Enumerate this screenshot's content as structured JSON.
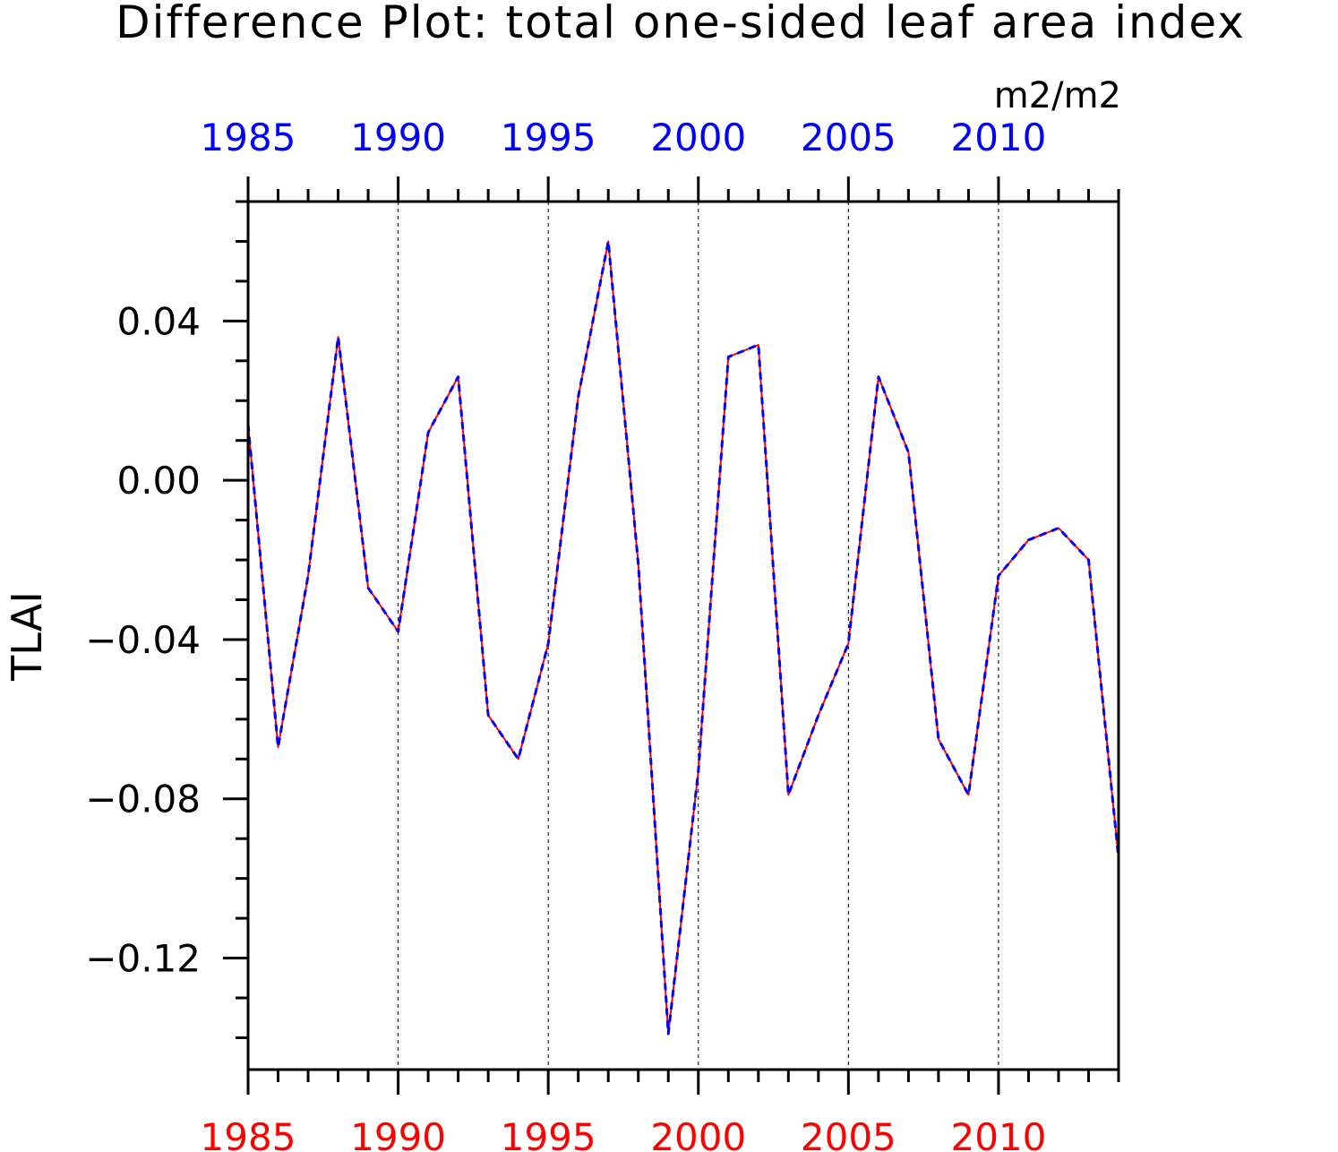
{
  "chart_data": {
    "type": "line",
    "title": "Difference Plot: total one-sided leaf area index",
    "units": "m2/m2",
    "ylabel": "TLAI",
    "xlabel": "",
    "xlim": [
      1985,
      2014
    ],
    "ylim": [
      -0.148,
      0.07
    ],
    "x_major_ticks": [
      1985,
      1990,
      1995,
      2000,
      2005,
      2010
    ],
    "x_tick_labels_top": [
      "1985",
      "1990",
      "1995",
      "2000",
      "2005",
      "2010"
    ],
    "x_tick_labels_bottom": [
      "1985",
      "1990",
      "1995",
      "2000",
      "2005",
      "2010"
    ],
    "y_major_ticks": [
      0.04,
      0.0,
      -0.04,
      -0.08,
      -0.12
    ],
    "y_tick_labels": [
      "0.04",
      "0.00",
      "−0.04",
      "−0.08",
      "−0.12"
    ],
    "y_minor_step": 0.01,
    "x_minor_step": 1,
    "grid": "vertical dashed at major x ticks",
    "x": [
      1985,
      1986,
      1987,
      1988,
      1989,
      1990,
      1991,
      1992,
      1993,
      1994,
      1995,
      1996,
      1997,
      1998,
      1999,
      2000,
      2001,
      2002,
      2003,
      2004,
      2005,
      2006,
      2007,
      2008,
      2009,
      2010,
      2011,
      2012,
      2013,
      2014
    ],
    "series": [
      {
        "color": "#ff0000",
        "style": "solid",
        "values": [
          0.014,
          -0.067,
          -0.024,
          0.036,
          -0.027,
          -0.038,
          0.012,
          0.026,
          -0.059,
          -0.07,
          -0.041,
          0.021,
          0.06,
          -0.021,
          -0.139,
          -0.073,
          0.031,
          0.034,
          -0.079,
          -0.059,
          -0.041,
          0.026,
          0.007,
          -0.065,
          -0.079,
          -0.024,
          -0.015,
          -0.012,
          -0.02,
          -0.095
        ]
      },
      {
        "color": "#0000ff",
        "style": "dashed",
        "values": [
          0.014,
          -0.067,
          -0.024,
          0.036,
          -0.027,
          -0.038,
          0.012,
          0.026,
          -0.059,
          -0.07,
          -0.041,
          0.021,
          0.06,
          -0.021,
          -0.139,
          -0.073,
          0.031,
          0.034,
          -0.079,
          -0.059,
          -0.041,
          0.026,
          0.007,
          -0.065,
          -0.079,
          -0.024,
          -0.015,
          -0.012,
          -0.02,
          -0.095
        ]
      }
    ],
    "colors": {
      "top_axis_labels": "#0000ff",
      "bottom_axis_labels": "#ff0000",
      "axis": "#000000"
    }
  }
}
